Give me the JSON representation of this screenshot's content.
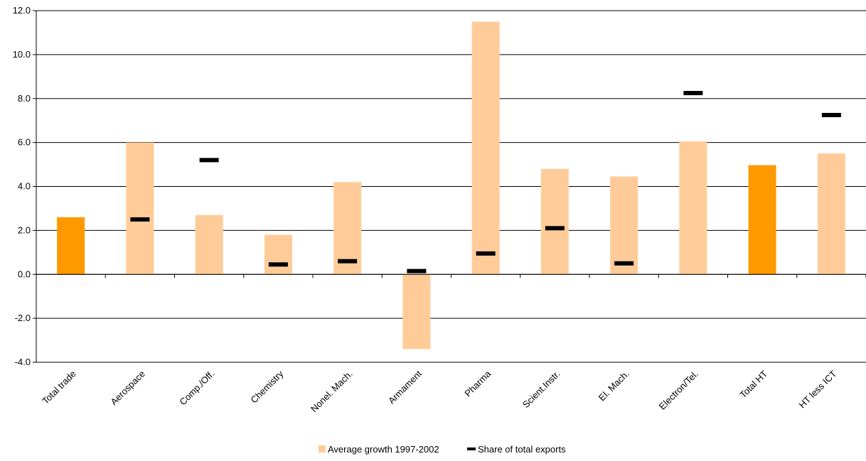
{
  "chart_data": {
    "type": "bar",
    "categories": [
      "Total trade",
      "Aerospace",
      "Comp./Off.",
      "Chemistry",
      "Nonel. Mach.",
      "Armament",
      "Pharma",
      "Scient.Instr.",
      "El. Mach.",
      "Electron/Tel.",
      "Total HT",
      "HT less ICT"
    ],
    "series": [
      {
        "name": "Average growth 1997-2002",
        "type": "bar",
        "values": [
          2.6,
          6.0,
          2.7,
          1.8,
          4.2,
          -3.4,
          11.5,
          4.8,
          4.45,
          6.05,
          4.97,
          5.5
        ],
        "color": "#ffcc99",
        "highlight_color": "#ff9900",
        "highlight_categories": [
          "Total trade",
          "Total HT"
        ]
      },
      {
        "name": "Share of total exports",
        "type": "marker",
        "values": [
          null,
          2.5,
          5.2,
          0.45,
          0.6,
          0.15,
          0.95,
          2.1,
          0.5,
          8.25,
          null,
          7.25
        ],
        "color": "#000000"
      }
    ],
    "yticks": [
      "12.0",
      "10.0",
      "8.0",
      "6.0",
      "4.0",
      "2.0",
      "0.0",
      "-2.0",
      "-4.0"
    ],
    "ylim": [
      -4,
      12
    ],
    "grid": true,
    "legend": "bottom"
  }
}
